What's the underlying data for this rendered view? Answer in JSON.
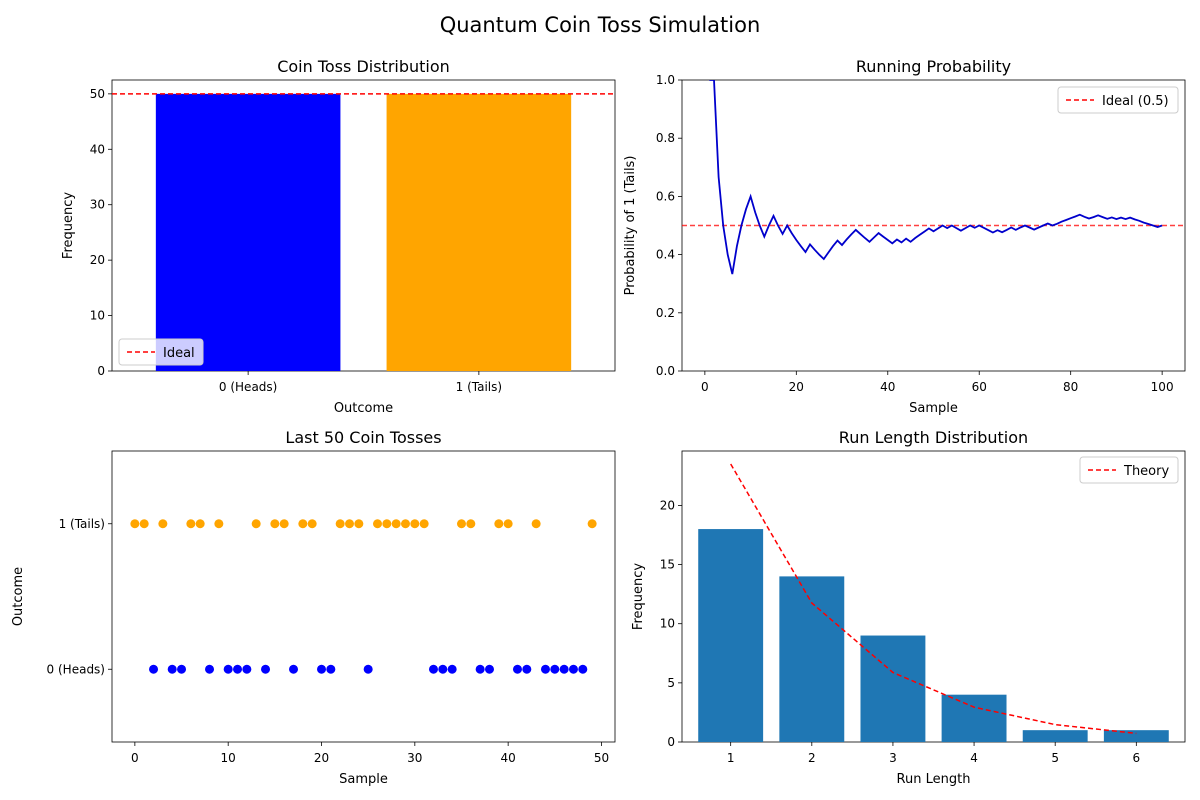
{
  "figure": {
    "title": "Quantum Coin Toss Simulation"
  },
  "chart_data": [
    {
      "id": "distribution",
      "type": "bar",
      "title": "Coin Toss Distribution",
      "xlabel": "Outcome",
      "ylabel": "Frequency",
      "categories": [
        "0 (Heads)",
        "1 (Tails)"
      ],
      "values": [
        50,
        50
      ],
      "colors": [
        "#0000ff",
        "#ffa500"
      ],
      "ylim": [
        0,
        52.5
      ],
      "yticks": [
        0,
        10,
        20,
        30,
        40,
        50
      ],
      "reference_line": {
        "name": "Ideal",
        "value": 50,
        "color": "#ff0000"
      },
      "legend": {
        "position": "lower-left",
        "entries": [
          "Ideal"
        ]
      }
    },
    {
      "id": "running",
      "type": "line",
      "title": "Running Probability",
      "xlabel": "Sample",
      "ylabel": "Probability of 1 (Tails)",
      "xlim": [
        -5,
        105
      ],
      "ylim": [
        0,
        1
      ],
      "xticks": [
        0,
        20,
        40,
        60,
        80,
        100
      ],
      "yticks": [
        0.0,
        0.2,
        0.4,
        0.6,
        0.8,
        1.0
      ],
      "line_color": "#0000cc",
      "x": [
        1,
        2,
        3,
        4,
        5,
        6,
        7,
        8,
        9,
        10,
        11,
        12,
        13,
        14,
        15,
        16,
        17,
        18,
        19,
        20,
        21,
        22,
        23,
        24,
        25,
        26,
        27,
        28,
        29,
        30,
        31,
        32,
        33,
        34,
        35,
        36,
        37,
        38,
        39,
        40,
        41,
        42,
        43,
        44,
        45,
        46,
        47,
        48,
        49,
        50,
        51,
        52,
        53,
        54,
        55,
        56,
        57,
        58,
        59,
        60,
        61,
        62,
        63,
        64,
        65,
        66,
        67,
        68,
        69,
        70,
        71,
        72,
        73,
        74,
        75,
        76,
        77,
        78,
        79,
        80,
        81,
        82,
        83,
        84,
        85,
        86,
        87,
        88,
        89,
        90,
        91,
        92,
        93,
        94,
        95,
        96,
        97,
        98,
        99,
        100
      ],
      "y": [
        1.0,
        1.0,
        0.667,
        0.5,
        0.4,
        0.333,
        0.429,
        0.5,
        0.556,
        0.6,
        0.545,
        0.5,
        0.462,
        0.5,
        0.533,
        0.5,
        0.471,
        0.5,
        0.474,
        0.45,
        0.429,
        0.409,
        0.435,
        0.417,
        0.4,
        0.385,
        0.407,
        0.429,
        0.448,
        0.433,
        0.452,
        0.469,
        0.485,
        0.471,
        0.457,
        0.444,
        0.459,
        0.474,
        0.462,
        0.45,
        0.439,
        0.452,
        0.442,
        0.455,
        0.444,
        0.457,
        0.468,
        0.479,
        0.49,
        0.48,
        0.49,
        0.5,
        0.491,
        0.5,
        0.491,
        0.482,
        0.491,
        0.5,
        0.492,
        0.5,
        0.492,
        0.484,
        0.476,
        0.484,
        0.477,
        0.485,
        0.493,
        0.485,
        0.493,
        0.5,
        0.493,
        0.486,
        0.493,
        0.5,
        0.507,
        0.5,
        0.506,
        0.513,
        0.519,
        0.525,
        0.531,
        0.537,
        0.53,
        0.524,
        0.529,
        0.535,
        0.529,
        0.523,
        0.528,
        0.522,
        0.527,
        0.522,
        0.527,
        0.521,
        0.516,
        0.51,
        0.505,
        0.5,
        0.495,
        0.5
      ],
      "reference_line": {
        "name": "Ideal (0.5)",
        "value": 0.5,
        "color": "#ff0000"
      },
      "legend": {
        "position": "top-right",
        "entries": [
          "Ideal (0.5)"
        ]
      }
    },
    {
      "id": "last50",
      "type": "scatter",
      "title": "Last 50 Coin Tosses",
      "xlabel": "Sample",
      "ylabel": "Outcome",
      "xlim": [
        -2.45,
        51.45
      ],
      "ylim": [
        -0.5,
        1.5
      ],
      "xticks": [
        0,
        10,
        20,
        30,
        40,
        50
      ],
      "ytick_values": [
        0,
        1
      ],
      "ytick_labels": [
        "0 (Heads)",
        "1 (Tails)"
      ],
      "colors": {
        "heads": "#0000ff",
        "tails": "#ffa500"
      },
      "outcomes": [
        1,
        1,
        0,
        1,
        0,
        0,
        1,
        1,
        0,
        1,
        0,
        0,
        0,
        1,
        0,
        1,
        1,
        0,
        1,
        1,
        0,
        0,
        1,
        1,
        1,
        0,
        1,
        1,
        1,
        1,
        1,
        1,
        0,
        0,
        0,
        1,
        1,
        0,
        0,
        1,
        1,
        0,
        0,
        1,
        0,
        0,
        0,
        0,
        0,
        1
      ]
    },
    {
      "id": "runs",
      "type": "bar",
      "title": "Run Length Distribution",
      "xlabel": "Run Length",
      "ylabel": "Frequency",
      "categories": [
        1,
        2,
        3,
        4,
        5,
        6
      ],
      "values": [
        18,
        14,
        9,
        4,
        1,
        1
      ],
      "bar_color": "#1f77b4",
      "xlim": [
        0.4,
        6.6
      ],
      "ylim": [
        0,
        24.6
      ],
      "yticks": [
        0,
        5,
        10,
        15,
        20
      ],
      "theory": {
        "name": "Theory",
        "color": "#ff0000",
        "x": [
          1,
          2,
          3,
          4,
          5,
          6
        ],
        "y": [
          23.5,
          11.75,
          5.875,
          2.94,
          1.47,
          0.73
        ]
      },
      "legend": {
        "position": "top-right",
        "entries": [
          "Theory"
        ]
      }
    }
  ]
}
